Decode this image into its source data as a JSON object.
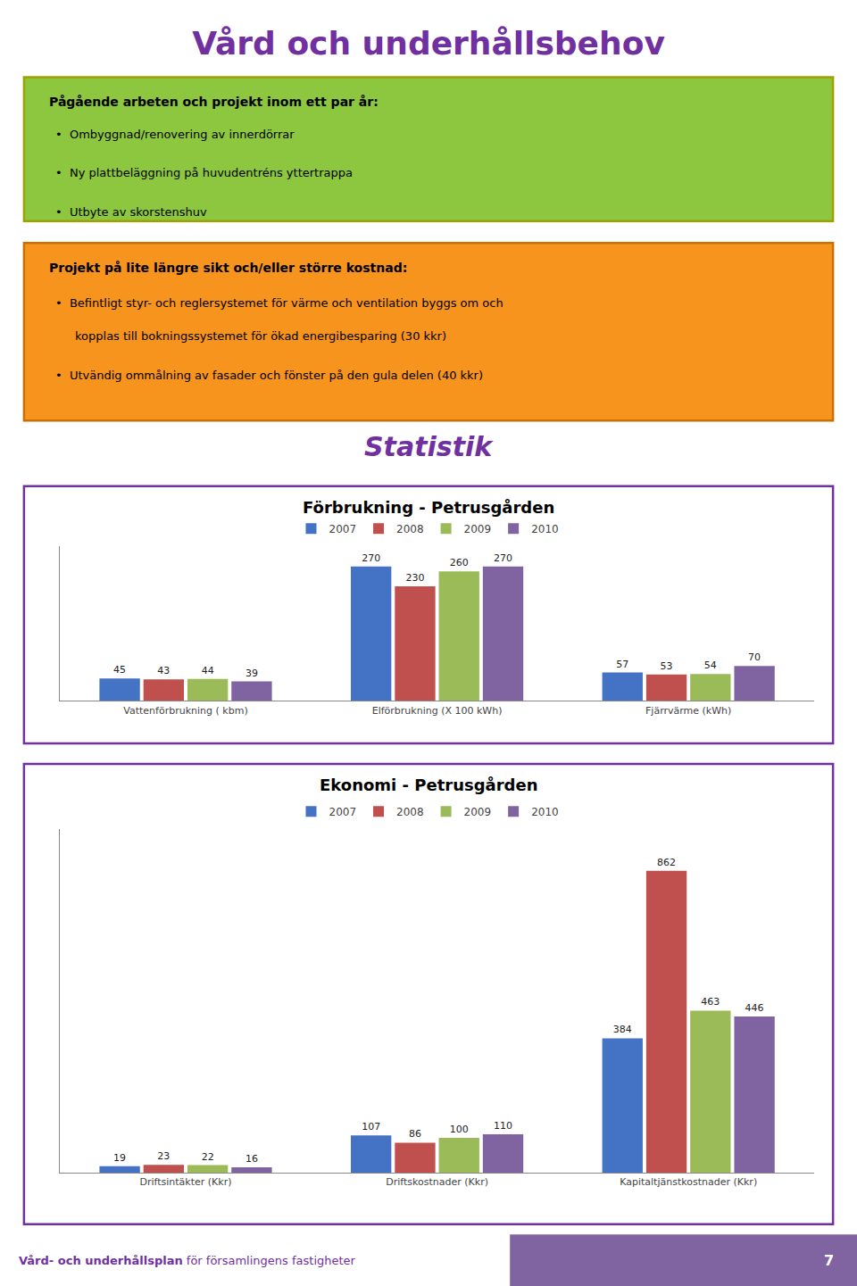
{
  "title": "Vård och underhållsbehov",
  "annotations": [
    [
      "Pågående arbeten och projekt inom ett par år:",
      "•  Ombyggnad/renovering av innerdörrar",
      "•  Ny plattbeläggning på huvudentréns yttertrappa",
      "•  Utbyte av skorstenshuv"
    ],
    [
      "Projekt på lite längre sikt och/eller större kostnad:",
      "•  Befintligt styr- och reglersystemet för värme och ventilation byggs om och",
      "kopplas till bokningssystemet för ökad energibesparing (30 kkr)",
      "•  Utvändig ommålning av fasader och fönster på den gula delen (40 kkr)"
    ],
    [
      "Statistik"
    ],
    [
      "Vård- och underhållsplan",
      " för församlingens fastigheter",
      "7"
    ]
  ],
  "chart_data": [
    {
      "type": "bar",
      "title": "Förbrukning - Petrusgården",
      "categories": [
        "Vattenförbrukning ( kbm)",
        "Elförbrukning (X 100 kWh)",
        "Fjärrvärme (kWh)"
      ],
      "series": [
        {
          "name": "2007",
          "color": "#4472C4",
          "values": [
            45,
            270,
            57
          ]
        },
        {
          "name": "2008",
          "color": "#C0504D",
          "values": [
            43,
            230,
            53
          ]
        },
        {
          "name": "2009",
          "color": "#9BBB59",
          "values": [
            44,
            260,
            54
          ]
        },
        {
          "name": "2010",
          "color": "#8064A2",
          "values": [
            39,
            270,
            70
          ]
        }
      ],
      "ylim": [
        0,
        310
      ],
      "data_labels": true,
      "tick_labels": "x",
      "grid": false,
      "legend": "top"
    },
    {
      "type": "bar",
      "title": "Ekonomi - Petrusgården",
      "categories": [
        "Driftsintäkter (Kkr)",
        "Driftskostnader (Kkr)",
        "Kapitaltjänstkostnader (Kkr)"
      ],
      "series": [
        {
          "name": "2007",
          "color": "#4472C4",
          "values": [
            19,
            107,
            384
          ]
        },
        {
          "name": "2008",
          "color": "#C0504D",
          "values": [
            23,
            86,
            862
          ]
        },
        {
          "name": "2009",
          "color": "#9BBB59",
          "values": [
            22,
            100,
            463
          ]
        },
        {
          "name": "2010",
          "color": "#8064A2",
          "values": [
            16,
            110,
            446
          ]
        }
      ],
      "ylim": [
        0,
        980
      ],
      "data_labels": true,
      "tick_labels": "x",
      "grid": false,
      "legend": "top"
    }
  ]
}
